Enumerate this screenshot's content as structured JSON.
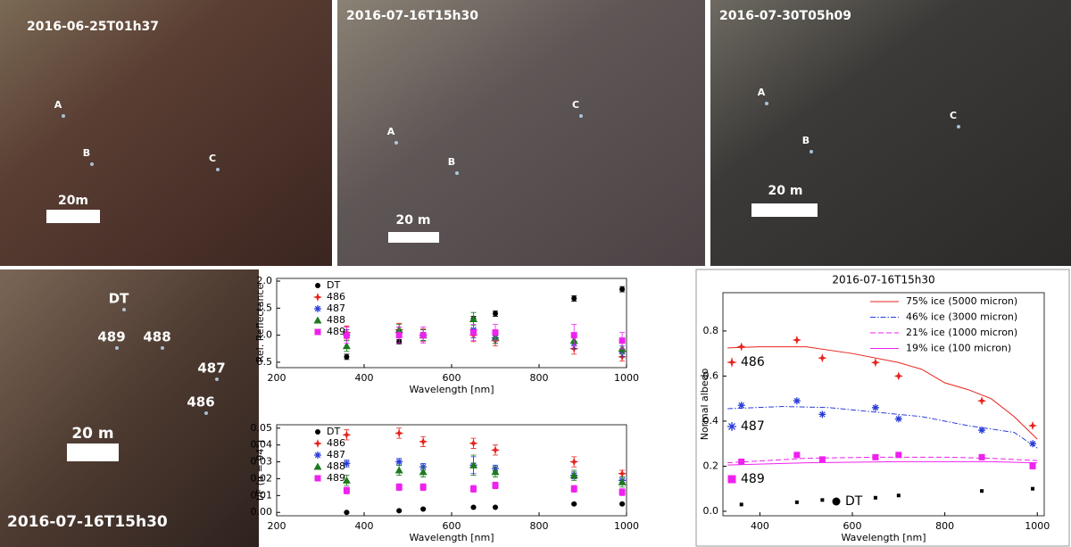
{
  "panels": [
    {
      "timestamp": "2016-06-25T01h37",
      "points": [
        "A",
        "B",
        "C"
      ],
      "scale": "20m"
    },
    {
      "timestamp": "2016-07-16T15h30",
      "points": [
        "A",
        "B",
        "C"
      ],
      "scale": "20 m"
    },
    {
      "timestamp": "2016-07-30T05h09",
      "points": [
        "A",
        "B",
        "C"
      ],
      "scale": "20 m"
    },
    {
      "timestamp": "2016-07-16T15h30",
      "points": [
        "DT",
        "489",
        "488",
        "487",
        "486"
      ],
      "scale": "20 m"
    }
  ],
  "chart_data": [
    {
      "type": "scatter",
      "xlabel": "Wavelength [nm]",
      "ylabel": "Rel. Reflectance",
      "x": [
        360,
        480,
        535,
        650,
        700,
        880,
        990
      ],
      "xlim": [
        200,
        1000
      ],
      "xticks": [
        200,
        400,
        600,
        800,
        1000
      ],
      "ylim": [
        0.4,
        2.05
      ],
      "yticks": [
        0.5,
        {
          "value": 1,
          "label": "1.0"
        },
        1.5,
        {
          "value": 2,
          "label": "2.0"
        }
      ],
      "legend": "top-left",
      "series": [
        {
          "name": "DT",
          "color": "#000000",
          "marker": "circle",
          "values": [
            0.6,
            0.88,
            1.0,
            1.3,
            1.4,
            1.68,
            1.85
          ],
          "errors": [
            0.05,
            0.04,
            0.05,
            0.05,
            0.05,
            0.05,
            0.05
          ]
        },
        {
          "name": "486",
          "color": "#e8221c",
          "marker": "star",
          "values": [
            1.05,
            1.1,
            1.0,
            1.0,
            0.9,
            0.75,
            0.6
          ],
          "errors": [
            0.12,
            0.12,
            0.12,
            0.12,
            0.1,
            0.1,
            0.08
          ]
        },
        {
          "name": "487",
          "color": "#2a3cd8",
          "marker": "asterisk",
          "values": [
            1.0,
            1.05,
            1.0,
            1.1,
            0.95,
            0.85,
            0.7
          ],
          "errors": [
            0.1,
            0.1,
            0.1,
            0.15,
            0.1,
            0.1,
            0.1
          ]
        },
        {
          "name": "488",
          "color": "#1d7a1d",
          "marker": "triangle",
          "values": [
            0.8,
            1.1,
            1.0,
            1.3,
            0.95,
            0.9,
            0.75
          ],
          "errors": [
            0.1,
            0.1,
            0.1,
            0.12,
            0.1,
            0.1,
            0.1
          ]
        },
        {
          "name": "489",
          "color": "#ee22ee",
          "marker": "square",
          "values": [
            1.0,
            1.0,
            1.0,
            1.05,
            1.05,
            1.0,
            0.9
          ],
          "errors": [
            0.15,
            0.15,
            0.15,
            0.15,
            0.15,
            0.2,
            0.15
          ]
        }
      ]
    },
    {
      "type": "scatter",
      "xlabel": "Wavelength [nm]",
      "ylabel": "I/F (α = 94°)",
      "x": [
        360,
        480,
        535,
        650,
        700,
        880,
        990
      ],
      "xlim": [
        200,
        1000
      ],
      "xticks": [
        200,
        400,
        600,
        800,
        1000
      ],
      "ylim": [
        -0.002,
        0.052
      ],
      "yticks": [
        {
          "value": 0,
          "label": "0.00"
        },
        {
          "value": 0.01,
          "label": "0.01"
        },
        {
          "value": 0.02,
          "label": "0.02"
        },
        {
          "value": 0.03,
          "label": "0.03"
        },
        {
          "value": 0.04,
          "label": "0.04"
        },
        {
          "value": 0.05,
          "label": "0.05"
        }
      ],
      "legend": "top-left",
      "series": [
        {
          "name": "DT",
          "color": "#000000",
          "marker": "circle",
          "values": [
            0.0,
            0.001,
            0.002,
            0.003,
            0.003,
            0.005,
            0.005
          ],
          "errors": [
            0.0003,
            0.0003,
            0.0003,
            0.0003,
            0.0003,
            0.0003,
            0.0003
          ]
        },
        {
          "name": "486",
          "color": "#e8221c",
          "marker": "star",
          "values": [
            0.046,
            0.047,
            0.042,
            0.041,
            0.037,
            0.03,
            0.023
          ],
          "errors": [
            0.003,
            0.003,
            0.003,
            0.003,
            0.003,
            0.003,
            0.002
          ]
        },
        {
          "name": "487",
          "color": "#2a3cd8",
          "marker": "asterisk",
          "values": [
            0.029,
            0.03,
            0.027,
            0.028,
            0.026,
            0.022,
            0.019
          ],
          "errors": [
            0.002,
            0.002,
            0.002,
            0.005,
            0.002,
            0.002,
            0.002
          ]
        },
        {
          "name": "488",
          "color": "#1d7a1d",
          "marker": "triangle",
          "values": [
            0.019,
            0.025,
            0.024,
            0.028,
            0.024,
            0.022,
            0.018
          ],
          "errors": [
            0.003,
            0.003,
            0.003,
            0.006,
            0.003,
            0.003,
            0.003
          ]
        },
        {
          "name": "489",
          "color": "#ee22ee",
          "marker": "square",
          "values": [
            0.013,
            0.015,
            0.015,
            0.014,
            0.016,
            0.014,
            0.012
          ],
          "errors": [
            0.002,
            0.002,
            0.002,
            0.002,
            0.002,
            0.002,
            0.002
          ]
        }
      ]
    },
    {
      "type": "line",
      "title": "2016-07-16T15h30",
      "xlabel": "Wavelength [nm]",
      "ylabel": "Normal albedo",
      "xlim": [
        320,
        1015
      ],
      "xticks": [
        400,
        600,
        800,
        1000
      ],
      "ylim": [
        -0.02,
        0.97
      ],
      "yticks": [
        {
          "value": 0,
          "label": "0.0"
        },
        0.2,
        0.4,
        0.6,
        0.8
      ],
      "legend": "top-right",
      "series": [
        {
          "name": "75% ice (5000 micron)",
          "color": "#e8221c",
          "dash": "solid",
          "x": [
            330,
            400,
            500,
            600,
            700,
            750,
            800,
            850,
            900,
            950,
            1000
          ],
          "values": [
            0.725,
            0.73,
            0.73,
            0.7,
            0.66,
            0.63,
            0.57,
            0.54,
            0.5,
            0.42,
            0.32
          ]
        },
        {
          "name": "46% ice (3000 micron)",
          "color": "#2a3cd8",
          "dash": "dashdot",
          "x": [
            330,
            450,
            550,
            650,
            750,
            850,
            950,
            1000
          ],
          "values": [
            0.455,
            0.465,
            0.46,
            0.44,
            0.42,
            0.38,
            0.35,
            0.28
          ]
        },
        {
          "name": "21% ice (1000 micron)",
          "color": "#ee22ee",
          "dash": "dash",
          "x": [
            330,
            500,
            650,
            800,
            900,
            1000
          ],
          "values": [
            0.215,
            0.235,
            0.24,
            0.24,
            0.235,
            0.225
          ]
        },
        {
          "name": "19% ice (100 micron)",
          "color": "#ee22ee",
          "dash": "solid",
          "x": [
            330,
            500,
            700,
            900,
            1000
          ],
          "values": [
            0.205,
            0.215,
            0.22,
            0.22,
            0.215
          ]
        },
        {
          "name": "486",
          "color": "#e8221c",
          "marker": "star",
          "x": [
            360,
            480,
            535,
            650,
            700,
            880,
            990
          ],
          "values": [
            0.73,
            0.76,
            0.68,
            0.66,
            0.6,
            0.49,
            0.38
          ]
        },
        {
          "name": "487",
          "color": "#2a3cd8",
          "marker": "asterisk",
          "x": [
            360,
            480,
            535,
            650,
            700,
            880,
            990
          ],
          "values": [
            0.47,
            0.49,
            0.43,
            0.46,
            0.41,
            0.36,
            0.3
          ]
        },
        {
          "name": "489",
          "color": "#ee22ee",
          "marker": "square",
          "x": [
            360,
            480,
            535,
            650,
            700,
            880,
            990
          ],
          "values": [
            0.22,
            0.25,
            0.23,
            0.24,
            0.25,
            0.24,
            0.2
          ]
        },
        {
          "name": "DT",
          "color": "#000000",
          "marker": "smallsquare",
          "x": [
            360,
            480,
            535,
            650,
            700,
            880,
            990
          ],
          "values": [
            0.03,
            0.04,
            0.05,
            0.06,
            0.07,
            0.09,
            0.1
          ]
        }
      ]
    }
  ]
}
